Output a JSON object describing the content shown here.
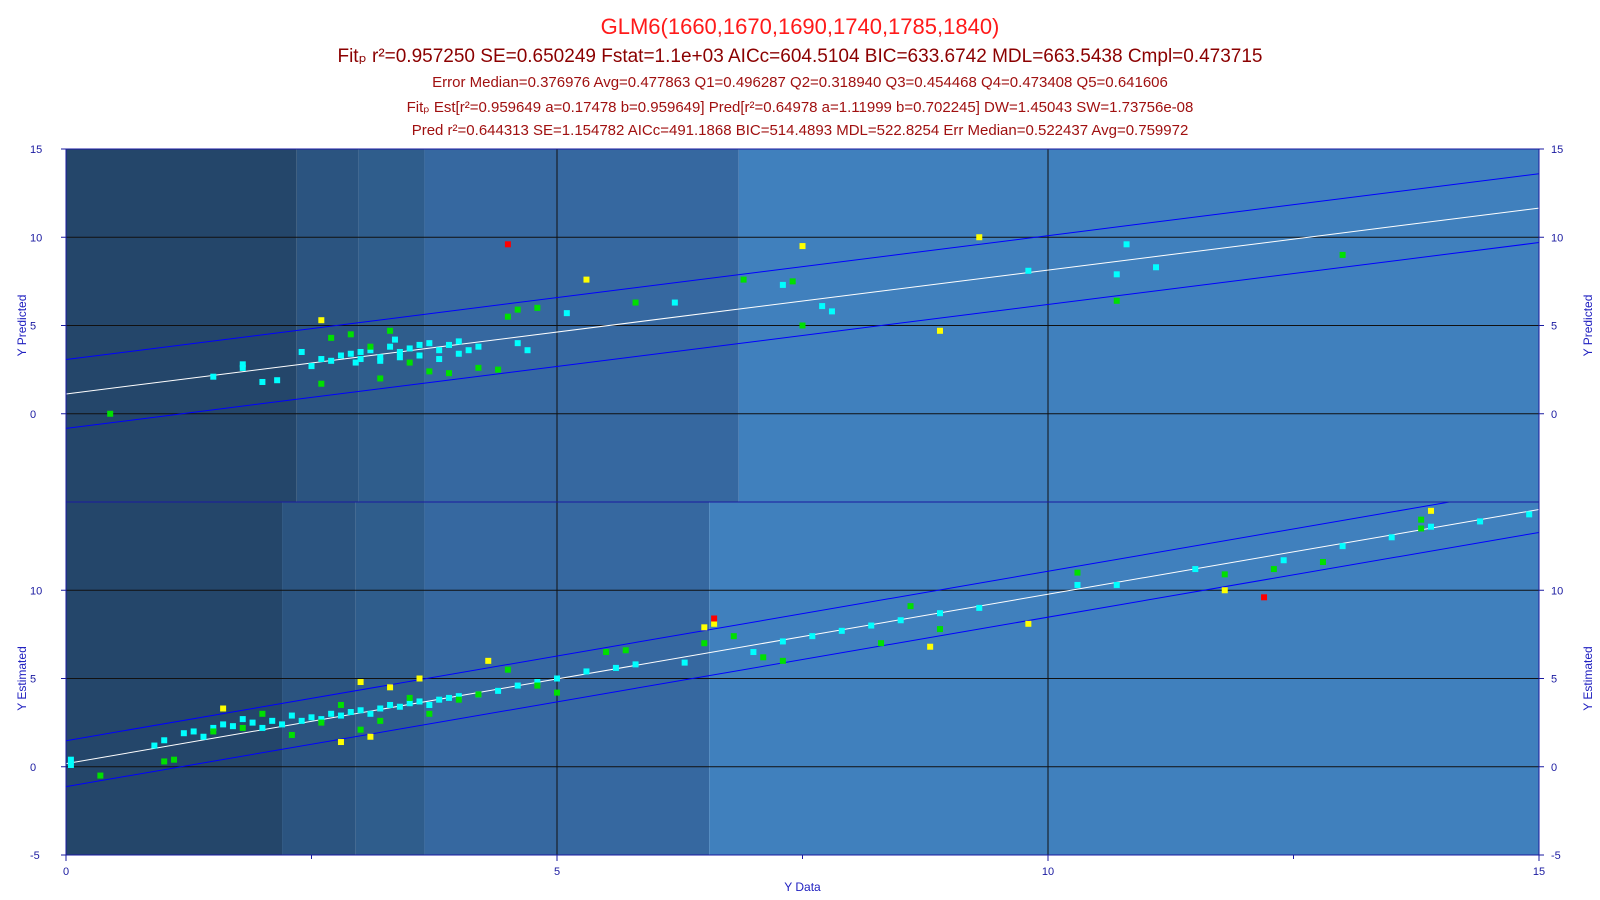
{
  "titles": {
    "line1": "GLM6(1660,1670,1690,1740,1785,1840)",
    "line2": "Fitₚ r²=0.957250 SE=0.650249 Fstat=1.1e+03 AICc=604.5104 BIC=633.6742 MDL=663.5438 Cmpl=0.473715",
    "line3": "Error Median=0.376976 Avg=0.477863 Q1=0.496287 Q2=0.318940 Q3=0.454468 Q4=0.473408 Q5=0.641606",
    "line4": "Fitₚ Est[r²=0.959649 a=0.17478 b=0.959649] Pred[r²=0.64978 a=1.11999 b=0.702245] DW=1.45043 SW=1.73756e-08",
    "line5": "Pred r²=0.644313 SE=1.154782 AICc=491.1868 BIC=514.4893 MDL=522.8254 Err Median=0.522437 Avg=0.759972"
  },
  "colors": {
    "title": "#ff1a1a",
    "subtitle": "#8b0000",
    "band_edges": [
      "#24466a",
      "#2b5480",
      "#2f5d8c",
      "#3668a0",
      "#4080bd"
    ],
    "fit_line": "#ffffff",
    "ci_line": "#0000ff",
    "points": {
      "cyan": "#00ffff",
      "green": "#00e000",
      "yellow": "#ffff00",
      "red": "#ff0000"
    }
  },
  "chart_data": [
    {
      "panel": "top",
      "type": "scatter",
      "xlabel": "Y Data",
      "ylabel_left": "Y Predicted",
      "ylabel_right": "Y Predicted",
      "xlim": [
        0,
        15
      ],
      "ylim": [
        -5,
        15
      ],
      "x_ticks": [
        0,
        5,
        10,
        15
      ],
      "y_ticks": [
        0,
        5,
        10,
        15
      ],
      "grid": true,
      "bands": [
        2.35,
        2.98,
        3.65,
        6.85,
        15
      ],
      "fit_line": {
        "a": 1.12,
        "b": 0.702
      },
      "ci_offset": 1.95,
      "series": [
        {
          "color": "cyan",
          "points": [
            [
              1.5,
              2.1
            ],
            [
              1.8,
              2.6
            ],
            [
              1.8,
              2.8
            ],
            [
              2.0,
              1.8
            ],
            [
              2.15,
              1.9
            ],
            [
              2.4,
              3.5
            ],
            [
              2.5,
              2.7
            ],
            [
              2.6,
              3.1
            ],
            [
              2.7,
              3.0
            ],
            [
              2.8,
              3.3
            ],
            [
              2.9,
              3.4
            ],
            [
              3.0,
              3.1
            ],
            [
              3.1,
              3.6
            ],
            [
              3.2,
              3.2
            ],
            [
              3.3,
              3.8
            ],
            [
              3.4,
              3.5
            ],
            [
              3.5,
              3.7
            ],
            [
              3.6,
              3.3
            ],
            [
              3.7,
              4.0
            ],
            [
              3.8,
              3.6
            ],
            [
              3.9,
              3.9
            ],
            [
              4.0,
              3.4
            ],
            [
              4.1,
              3.6
            ],
            [
              3.0,
              3.5
            ],
            [
              3.2,
              3.0
            ],
            [
              3.4,
              3.2
            ],
            [
              3.6,
              3.9
            ],
            [
              3.8,
              3.1
            ],
            [
              4.0,
              4.1
            ],
            [
              4.2,
              3.8
            ],
            [
              4.6,
              4.0
            ],
            [
              4.7,
              3.6
            ],
            [
              5.1,
              5.7
            ],
            [
              6.2,
              6.3
            ],
            [
              7.3,
              7.3
            ],
            [
              7.7,
              6.1
            ],
            [
              7.8,
              5.8
            ],
            [
              9.8,
              8.1
            ],
            [
              10.7,
              7.9
            ],
            [
              10.8,
              9.6
            ],
            [
              11.1,
              8.3
            ],
            [
              2.95,
              2.9
            ],
            [
              3.35,
              4.2
            ]
          ]
        },
        {
          "color": "green",
          "points": [
            [
              0.45,
              0.0
            ],
            [
              2.6,
              1.7
            ],
            [
              2.7,
              4.3
            ],
            [
              2.9,
              4.5
            ],
            [
              3.1,
              3.8
            ],
            [
              3.2,
              2.0
            ],
            [
              3.3,
              4.7
            ],
            [
              3.7,
              2.4
            ],
            [
              4.2,
              2.6
            ],
            [
              4.4,
              2.5
            ],
            [
              4.5,
              5.5
            ],
            [
              4.6,
              5.9
            ],
            [
              4.8,
              6.0
            ],
            [
              5.8,
              6.3
            ],
            [
              6.9,
              7.6
            ],
            [
              7.4,
              7.5
            ],
            [
              7.5,
              5.0
            ],
            [
              10.7,
              6.4
            ],
            [
              13.0,
              9.0
            ],
            [
              3.5,
              2.9
            ],
            [
              3.9,
              2.3
            ]
          ]
        },
        {
          "color": "yellow",
          "points": [
            [
              2.6,
              5.3
            ],
            [
              5.3,
              7.6
            ],
            [
              7.5,
              9.5
            ],
            [
              8.9,
              4.7
            ],
            [
              9.3,
              10.0
            ]
          ]
        },
        {
          "color": "red",
          "points": [
            [
              4.5,
              9.6
            ]
          ]
        }
      ]
    },
    {
      "panel": "bottom",
      "type": "scatter",
      "xlabel": "Y Data",
      "ylabel_left": "Y Estimated",
      "ylabel_right": "Y Estimated",
      "xlim": [
        0,
        15
      ],
      "ylim": [
        -5,
        15
      ],
      "x_ticks": [
        0,
        5,
        10,
        15
      ],
      "y_ticks": [
        -5,
        0,
        5,
        10
      ],
      "grid": true,
      "bands": [
        2.2,
        2.95,
        3.65,
        6.55,
        15
      ],
      "fit_line": {
        "a": 0.175,
        "b": 0.96
      },
      "ci_offset": 1.3,
      "series": [
        {
          "color": "cyan",
          "points": [
            [
              0.05,
              0.4
            ],
            [
              0.05,
              0.1
            ],
            [
              0.9,
              1.2
            ],
            [
              1.0,
              1.5
            ],
            [
              1.2,
              1.9
            ],
            [
              1.3,
              2.0
            ],
            [
              1.4,
              1.7
            ],
            [
              1.5,
              2.2
            ],
            [
              1.6,
              2.4
            ],
            [
              1.7,
              2.3
            ],
            [
              1.8,
              2.7
            ],
            [
              1.9,
              2.5
            ],
            [
              2.0,
              2.2
            ],
            [
              2.1,
              2.6
            ],
            [
              2.2,
              2.4
            ],
            [
              2.3,
              2.9
            ],
            [
              2.4,
              2.6
            ],
            [
              2.5,
              2.8
            ],
            [
              2.6,
              2.7
            ],
            [
              2.7,
              3.0
            ],
            [
              2.8,
              2.9
            ],
            [
              2.9,
              3.1
            ],
            [
              3.0,
              3.2
            ],
            [
              3.1,
              3.0
            ],
            [
              3.2,
              3.3
            ],
            [
              3.3,
              3.5
            ],
            [
              3.4,
              3.4
            ],
            [
              3.5,
              3.6
            ],
            [
              3.6,
              3.7
            ],
            [
              3.7,
              3.5
            ],
            [
              3.8,
              3.8
            ],
            [
              3.9,
              3.9
            ],
            [
              4.0,
              4.0
            ],
            [
              4.2,
              4.1
            ],
            [
              4.4,
              4.3
            ],
            [
              4.6,
              4.6
            ],
            [
              4.8,
              4.8
            ],
            [
              5.0,
              5.0
            ],
            [
              5.3,
              5.4
            ],
            [
              5.6,
              5.6
            ],
            [
              5.8,
              5.8
            ],
            [
              6.3,
              5.9
            ],
            [
              7.0,
              6.5
            ],
            [
              7.3,
              7.1
            ],
            [
              7.6,
              7.4
            ],
            [
              7.9,
              7.7
            ],
            [
              8.2,
              8.0
            ],
            [
              8.5,
              8.3
            ],
            [
              8.9,
              8.7
            ],
            [
              9.3,
              9.0
            ],
            [
              10.3,
              10.3
            ],
            [
              10.7,
              10.3
            ],
            [
              11.5,
              11.2
            ],
            [
              12.4,
              11.7
            ],
            [
              13.0,
              12.5
            ],
            [
              13.5,
              13.0
            ],
            [
              13.9,
              13.6
            ],
            [
              14.4,
              13.9
            ],
            [
              14.9,
              14.3
            ]
          ]
        },
        {
          "color": "green",
          "points": [
            [
              0.35,
              -0.5
            ],
            [
              1.0,
              0.3
            ],
            [
              1.1,
              0.4
            ],
            [
              1.5,
              2.0
            ],
            [
              1.8,
              2.2
            ],
            [
              2.0,
              3.0
            ],
            [
              2.3,
              1.8
            ],
            [
              2.6,
              2.5
            ],
            [
              2.8,
              3.5
            ],
            [
              3.0,
              2.1
            ],
            [
              3.2,
              2.6
            ],
            [
              3.5,
              3.9
            ],
            [
              3.7,
              3.0
            ],
            [
              4.0,
              3.8
            ],
            [
              4.2,
              4.1
            ],
            [
              4.5,
              5.5
            ],
            [
              4.8,
              4.6
            ],
            [
              5.0,
              4.2
            ],
            [
              5.5,
              6.5
            ],
            [
              5.7,
              6.6
            ],
            [
              6.5,
              7.0
            ],
            [
              6.8,
              7.4
            ],
            [
              7.1,
              6.2
            ],
            [
              7.3,
              6.0
            ],
            [
              8.3,
              7.0
            ],
            [
              8.6,
              9.1
            ],
            [
              8.9,
              7.8
            ],
            [
              10.3,
              11.0
            ],
            [
              11.8,
              10.9
            ],
            [
              12.3,
              11.2
            ],
            [
              12.8,
              11.6
            ],
            [
              13.8,
              13.5
            ],
            [
              13.8,
              14.0
            ]
          ]
        },
        {
          "color": "yellow",
          "points": [
            [
              1.6,
              3.3
            ],
            [
              2.8,
              1.4
            ],
            [
              3.0,
              4.8
            ],
            [
              3.1,
              1.7
            ],
            [
              3.3,
              4.5
            ],
            [
              3.6,
              5.0
            ],
            [
              4.3,
              6.0
            ],
            [
              6.5,
              7.9
            ],
            [
              6.6,
              8.1
            ],
            [
              8.8,
              6.8
            ],
            [
              9.8,
              8.1
            ],
            [
              11.8,
              10.0
            ],
            [
              13.9,
              14.5
            ]
          ]
        },
        {
          "color": "red",
          "points": [
            [
              6.6,
              8.4
            ],
            [
              12.2,
              9.6
            ]
          ]
        }
      ]
    }
  ]
}
